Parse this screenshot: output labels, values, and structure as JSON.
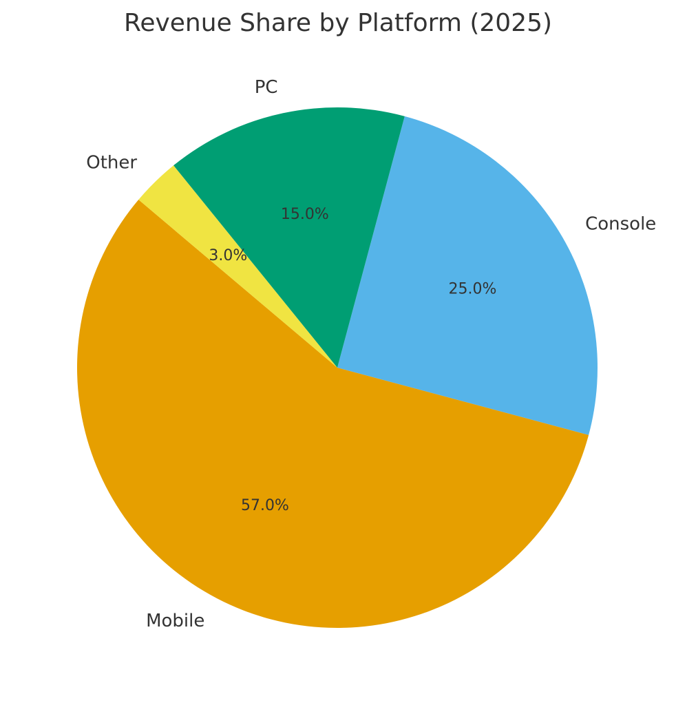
{
  "chart_data": {
    "type": "pie",
    "title": "Revenue Share by Platform (2025)",
    "categories": [
      "Console",
      "Mobile",
      "Other",
      "PC"
    ],
    "values": [
      25.0,
      57.0,
      3.0,
      15.0
    ],
    "percent_labels": [
      "25.0%",
      "57.0%",
      "3.0%",
      "15.0%"
    ],
    "colors": [
      "#56B4E9",
      "#E69F00",
      "#F0E442",
      "#009E73"
    ],
    "start_angle_deg": 75,
    "direction": "clockwise",
    "legend": "none"
  }
}
